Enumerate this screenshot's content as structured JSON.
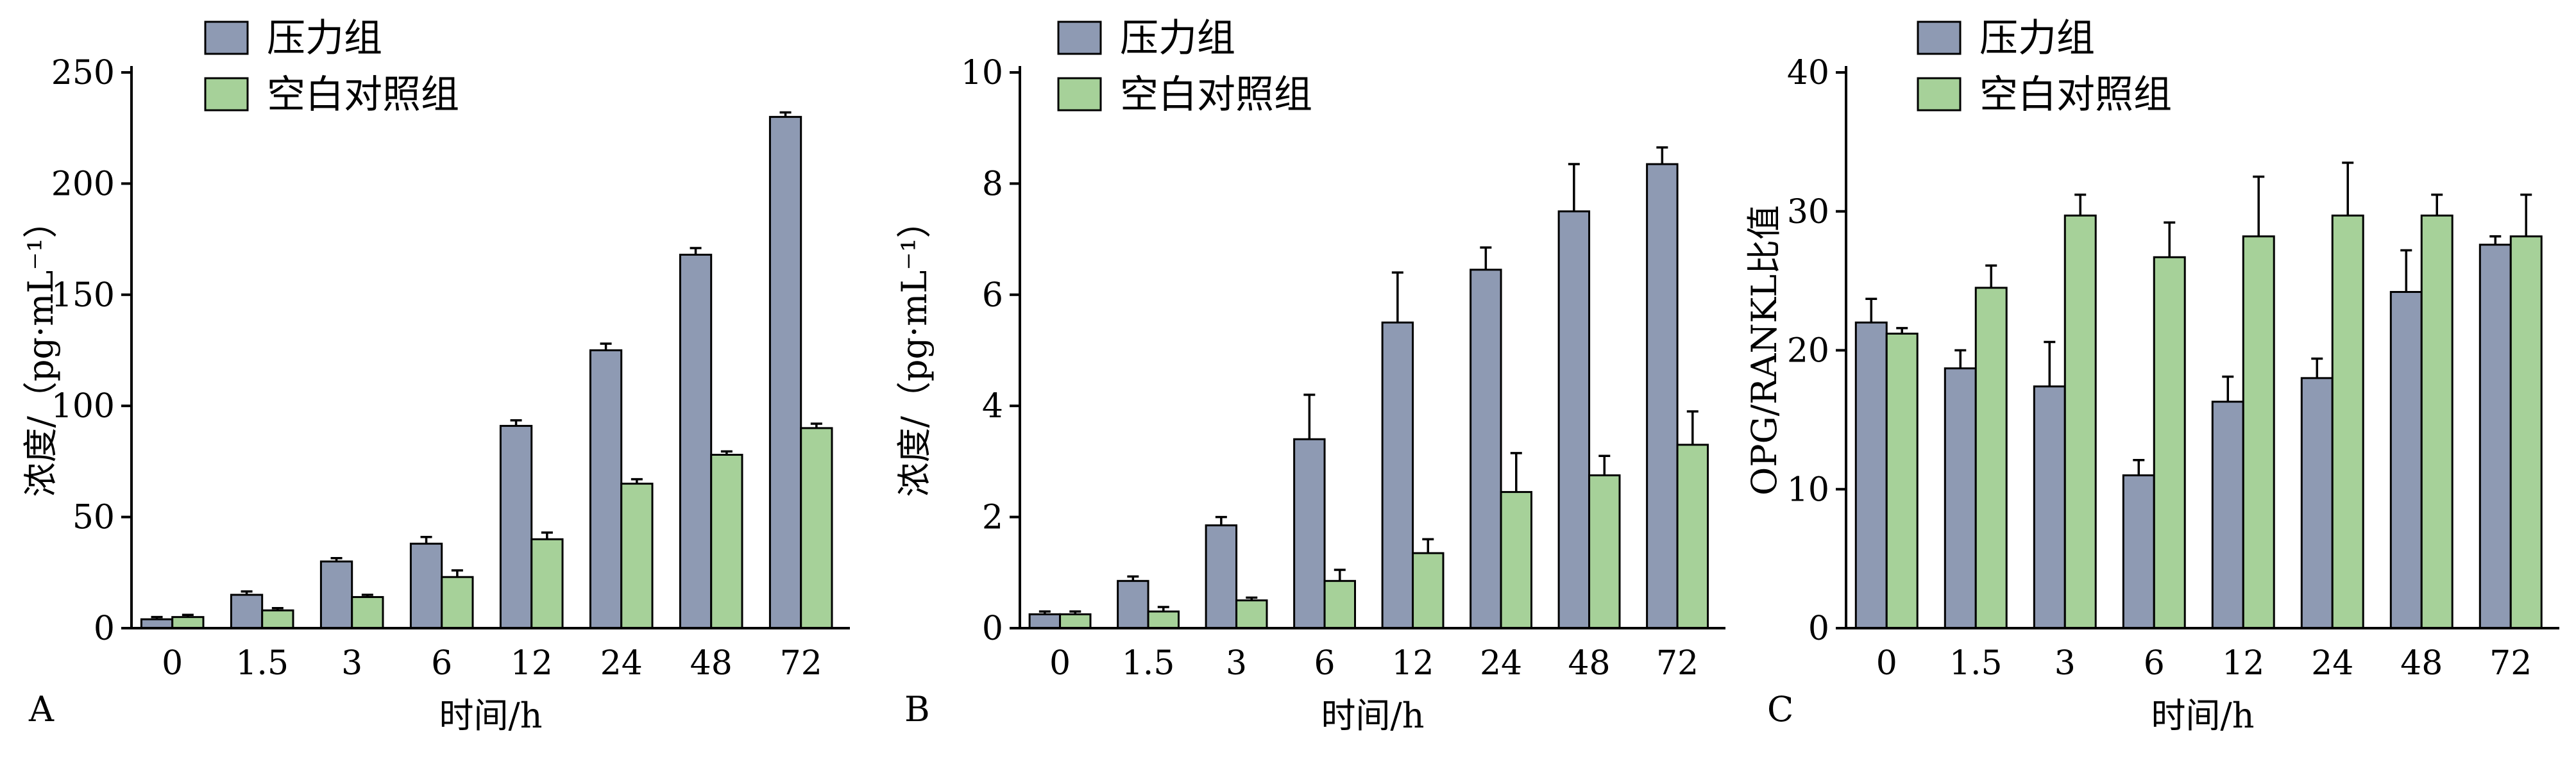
{
  "colors": {
    "pressure": "#8e9ab3",
    "control": "#a6d199"
  },
  "legend": [
    "压力组",
    "空白对照组"
  ],
  "chart_data": [
    {
      "type": "bar",
      "panel": "A",
      "categories": [
        "0",
        "1.5",
        "3",
        "6",
        "12",
        "24",
        "48",
        "72"
      ],
      "xlabel": "时间/h",
      "ylabel": "浓度/（pg·mL⁻¹）",
      "ylim": [
        0,
        250
      ],
      "yticks": [
        0,
        50,
        100,
        150,
        200,
        250
      ],
      "series": [
        {
          "name": "压力组",
          "values": [
            4,
            15,
            30,
            38,
            91,
            125,
            168,
            230
          ],
          "errors": [
            1,
            1.5,
            1.5,
            3,
            2.5,
            3,
            3,
            2
          ]
        },
        {
          "name": "空白对照组",
          "values": [
            5,
            8,
            14,
            23,
            40,
            65,
            78,
            90
          ],
          "errors": [
            1,
            1,
            1,
            3,
            3,
            2,
            1.5,
            2
          ]
        }
      ]
    },
    {
      "type": "bar",
      "panel": "B",
      "categories": [
        "0",
        "1.5",
        "3",
        "6",
        "12",
        "24",
        "48",
        "72"
      ],
      "xlabel": "时间/h",
      "ylabel": "浓度/（pg·mL⁻¹）",
      "ylim": [
        0,
        10
      ],
      "yticks": [
        0,
        2,
        4,
        6,
        8,
        10
      ],
      "series": [
        {
          "name": "压力组",
          "values": [
            0.25,
            0.85,
            1.85,
            3.4,
            5.5,
            6.45,
            7.5,
            8.35
          ],
          "errors": [
            0.05,
            0.08,
            0.15,
            0.8,
            0.9,
            0.4,
            0.85,
            0.3
          ]
        },
        {
          "name": "空白对照组",
          "values": [
            0.25,
            0.3,
            0.5,
            0.85,
            1.35,
            2.45,
            2.75,
            3.3
          ],
          "errors": [
            0.05,
            0.08,
            0.05,
            0.2,
            0.25,
            0.7,
            0.35,
            0.6
          ]
        }
      ]
    },
    {
      "type": "bar",
      "panel": "C",
      "categories": [
        "0",
        "1.5",
        "3",
        "6",
        "12",
        "24",
        "48",
        "72"
      ],
      "xlabel": "时间/h",
      "ylabel": "OPG/RANKL比值",
      "ylim": [
        0,
        40
      ],
      "yticks": [
        0,
        10,
        20,
        30,
        40
      ],
      "series": [
        {
          "name": "压力组",
          "values": [
            22,
            18.7,
            17.4,
            11,
            16.3,
            18,
            24.2,
            27.6
          ],
          "errors": [
            1.7,
            1.3,
            3.2,
            1.1,
            1.8,
            1.4,
            3,
            0.6
          ]
        },
        {
          "name": "空白对照组",
          "values": [
            21.2,
            24.5,
            29.7,
            26.7,
            28.2,
            29.7,
            29.7,
            28.2
          ],
          "errors": [
            0.4,
            1.6,
            1.5,
            2.5,
            4.3,
            3.8,
            1.5,
            3
          ]
        }
      ]
    }
  ]
}
